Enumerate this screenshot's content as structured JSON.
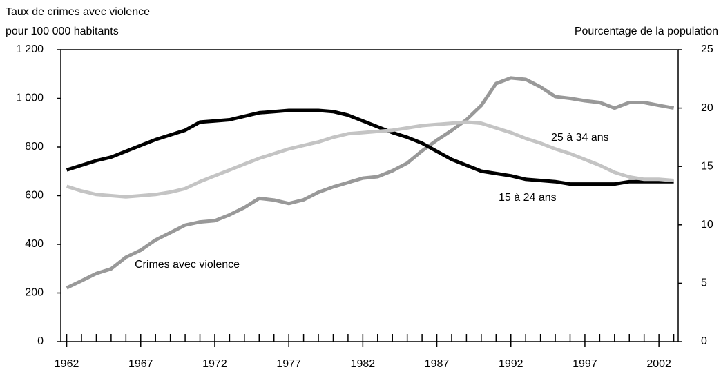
{
  "chart_data": {
    "type": "line",
    "y_label": [
      "Taux de crimes avec violence",
      "pour 100 000 habitants"
    ],
    "y2_label": "Pourcentage de la population",
    "x": [
      1962,
      1963,
      1964,
      1965,
      1966,
      1967,
      1968,
      1969,
      1970,
      1971,
      1972,
      1973,
      1974,
      1975,
      1976,
      1977,
      1978,
      1979,
      1980,
      1981,
      1982,
      1983,
      1984,
      1985,
      1986,
      1987,
      1988,
      1989,
      1990,
      1991,
      1992,
      1993,
      1994,
      1995,
      1996,
      1997,
      1998,
      1999,
      2000,
      2001,
      2002,
      2003
    ],
    "xlim": [
      1961.6,
      2003.3
    ],
    "xticks": [
      1962,
      1967,
      1972,
      1977,
      1982,
      1987,
      1992,
      1997,
      2002
    ],
    "ylim": [
      0,
      1200
    ],
    "yticks": [
      0,
      200,
      400,
      600,
      800,
      {
        "value": 1000,
        "label": "1 000"
      },
      {
        "value": 1200,
        "label": "1 200"
      }
    ],
    "y2lim": [
      0,
      25
    ],
    "y2ticks": [
      0,
      5,
      10,
      15,
      20,
      25
    ],
    "series": [
      {
        "name": "Crimes avec violence",
        "color": "#999999",
        "axis": "y",
        "values": [
          221,
          250,
          280,
          299,
          347,
          376,
          418,
          448,
          479,
          492,
          497,
          521,
          551,
          589,
          582,
          568,
          583,
          614,
          636,
          654,
          672,
          678,
          702,
          734,
          784,
          828,
          868,
          912,
          971,
          1061,
          1084,
          1078,
          1047,
          1007,
          1000,
          990,
          983,
          960,
          983,
          983,
          971,
          960
        ]
      },
      {
        "name": "15 à 24 ans",
        "color": "#000000",
        "axis": "y2",
        "values": [
          14.7,
          15.1,
          15.5,
          15.8,
          16.3,
          16.8,
          17.3,
          17.7,
          18.1,
          18.8,
          18.9,
          19.0,
          19.3,
          19.6,
          19.7,
          19.8,
          19.8,
          19.8,
          19.7,
          19.4,
          18.9,
          18.4,
          17.9,
          17.5,
          17.0,
          16.3,
          15.6,
          15.1,
          14.6,
          14.4,
          14.2,
          13.9,
          13.8,
          13.7,
          13.5,
          13.5,
          13.5,
          13.5,
          13.7,
          13.7,
          13.7,
          13.7
        ]
      },
      {
        "name": "25 à 34 ans",
        "color": "#c4c4c4",
        "axis": "y2",
        "values": [
          13.3,
          12.9,
          12.6,
          12.5,
          12.4,
          12.5,
          12.6,
          12.8,
          13.1,
          13.7,
          14.2,
          14.7,
          15.2,
          15.7,
          16.1,
          16.5,
          16.8,
          17.1,
          17.5,
          17.8,
          17.9,
          18.0,
          18.1,
          18.3,
          18.5,
          18.6,
          18.7,
          18.8,
          18.7,
          18.3,
          17.9,
          17.4,
          17.0,
          16.5,
          16.1,
          15.6,
          15.1,
          14.5,
          14.1,
          13.9,
          13.9,
          13.8
        ]
      }
    ]
  }
}
